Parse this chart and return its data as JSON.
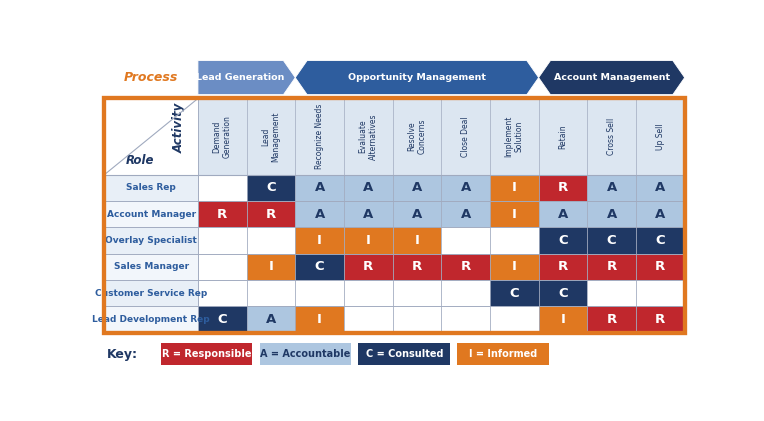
{
  "process_labels": [
    "Lead Generation",
    "Opportunity Management",
    "Account Management"
  ],
  "process_col_spans": [
    2,
    5,
    3
  ],
  "col_starts": [
    0,
    2,
    7
  ],
  "activities": [
    "Demand\nGeneration",
    "Lead\nManagement",
    "Recognize Needs",
    "Evaluate\nAlternatives",
    "Resolve\nConcerns",
    "Close Deal",
    "Implement\nSolution",
    "Retain",
    "Cross Sell",
    "Up Sell"
  ],
  "roles": [
    "Sales Rep",
    "Account Manager",
    "Overlay Specialist",
    "Sales Manager",
    "Customer Service Rep",
    "Lead Development Rep"
  ],
  "grid": [
    [
      "",
      "C",
      "A",
      "A",
      "A",
      "A",
      "I",
      "R",
      "A",
      "A"
    ],
    [
      "R",
      "R",
      "A",
      "A",
      "A",
      "A",
      "I",
      "A",
      "A",
      "A"
    ],
    [
      "",
      "",
      "I",
      "I",
      "I",
      "",
      "",
      "C",
      "C",
      "C"
    ],
    [
      "",
      "I",
      "C",
      "R",
      "R",
      "R",
      "I",
      "R",
      "R",
      "R"
    ],
    [
      "",
      "",
      "",
      "",
      "",
      "",
      "C",
      "C",
      "",
      ""
    ],
    [
      "C",
      "A",
      "I",
      "",
      "",
      "",
      "",
      "I",
      "R",
      "R"
    ]
  ],
  "colors": {
    "R": "#c0272d",
    "A": "#adc6e0",
    "C": "#1f3864",
    "I": "#e07820",
    "": "#ffffff"
  },
  "text_colors": {
    "R": "#ffffff",
    "A": "#1f3864",
    "C": "#ffffff",
    "I": "#ffffff",
    "": "#000000"
  },
  "role_label_color": "#2e5d9e",
  "process_arrow_colors": [
    "#6b8dc4",
    "#2e5d9e",
    "#1f3864"
  ],
  "key_items": [
    {
      "label": "R = Responsible",
      "color": "#c0272d",
      "text_color": "#ffffff"
    },
    {
      "label": "A = Accountable",
      "color": "#adc6e0",
      "text_color": "#1f3864"
    },
    {
      "label": "C = Consulted",
      "color": "#1f3864",
      "text_color": "#ffffff"
    },
    {
      "label": "I = Informed",
      "color": "#e07820",
      "text_color": "#ffffff"
    }
  ],
  "process_label": "Process",
  "activity_label": "Activity",
  "role_label": "Role",
  "bg_color": "#ffffff",
  "header_bg": "#dce6f1",
  "grid_line_color": "#a0aabf",
  "outer_border_color": "#e07820",
  "process_label_color": "#e07820",
  "row_bg_even": "#e8eff7",
  "row_bg_odd": "#f2f6fb"
}
